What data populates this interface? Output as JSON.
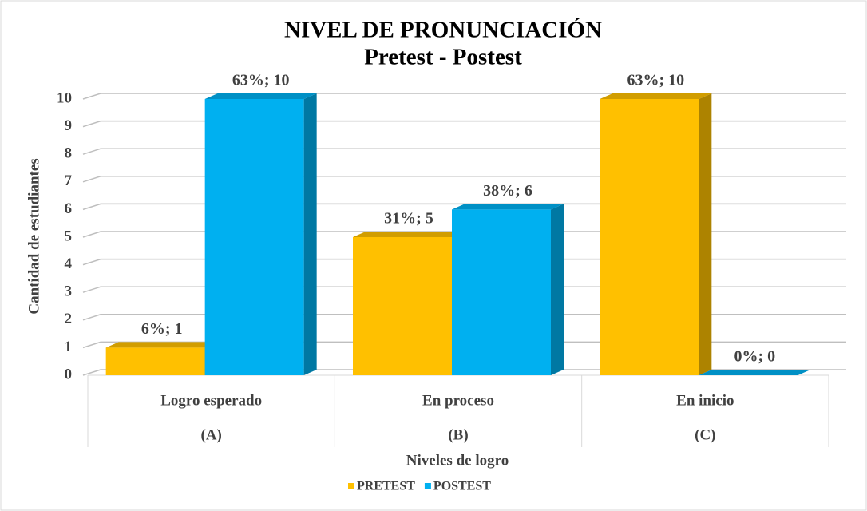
{
  "chart_data": {
    "type": "bar3d",
    "title": "NIVEL DE PRONUNCIACIÓN",
    "subtitle": "Pretest - Postest",
    "x_label": "Niveles de logro",
    "y_label": "Cantidad de estudiantes",
    "categories": [
      "Logro esperado",
      "En proceso",
      "En inicio"
    ],
    "subcategories": [
      "(A)",
      "(B)",
      "(C)"
    ],
    "series": [
      {
        "name": "PRETEST",
        "color": "#FFC000",
        "values": [
          1,
          5,
          10
        ],
        "value_labels": [
          "6%; 1",
          "31%; 5",
          "63%; 10"
        ]
      },
      {
        "name": "POSTEST",
        "color": "#00B0F0",
        "values": [
          10,
          6,
          0
        ],
        "value_labels": [
          "63%; 10",
          "38%; 6",
          "0%; 0"
        ]
      }
    ],
    "ylim": [
      0,
      10
    ],
    "yticks": [
      0,
      1,
      2,
      3,
      4,
      5,
      6,
      7,
      8,
      9,
      10
    ],
    "grid": true,
    "legend": "bottom"
  }
}
